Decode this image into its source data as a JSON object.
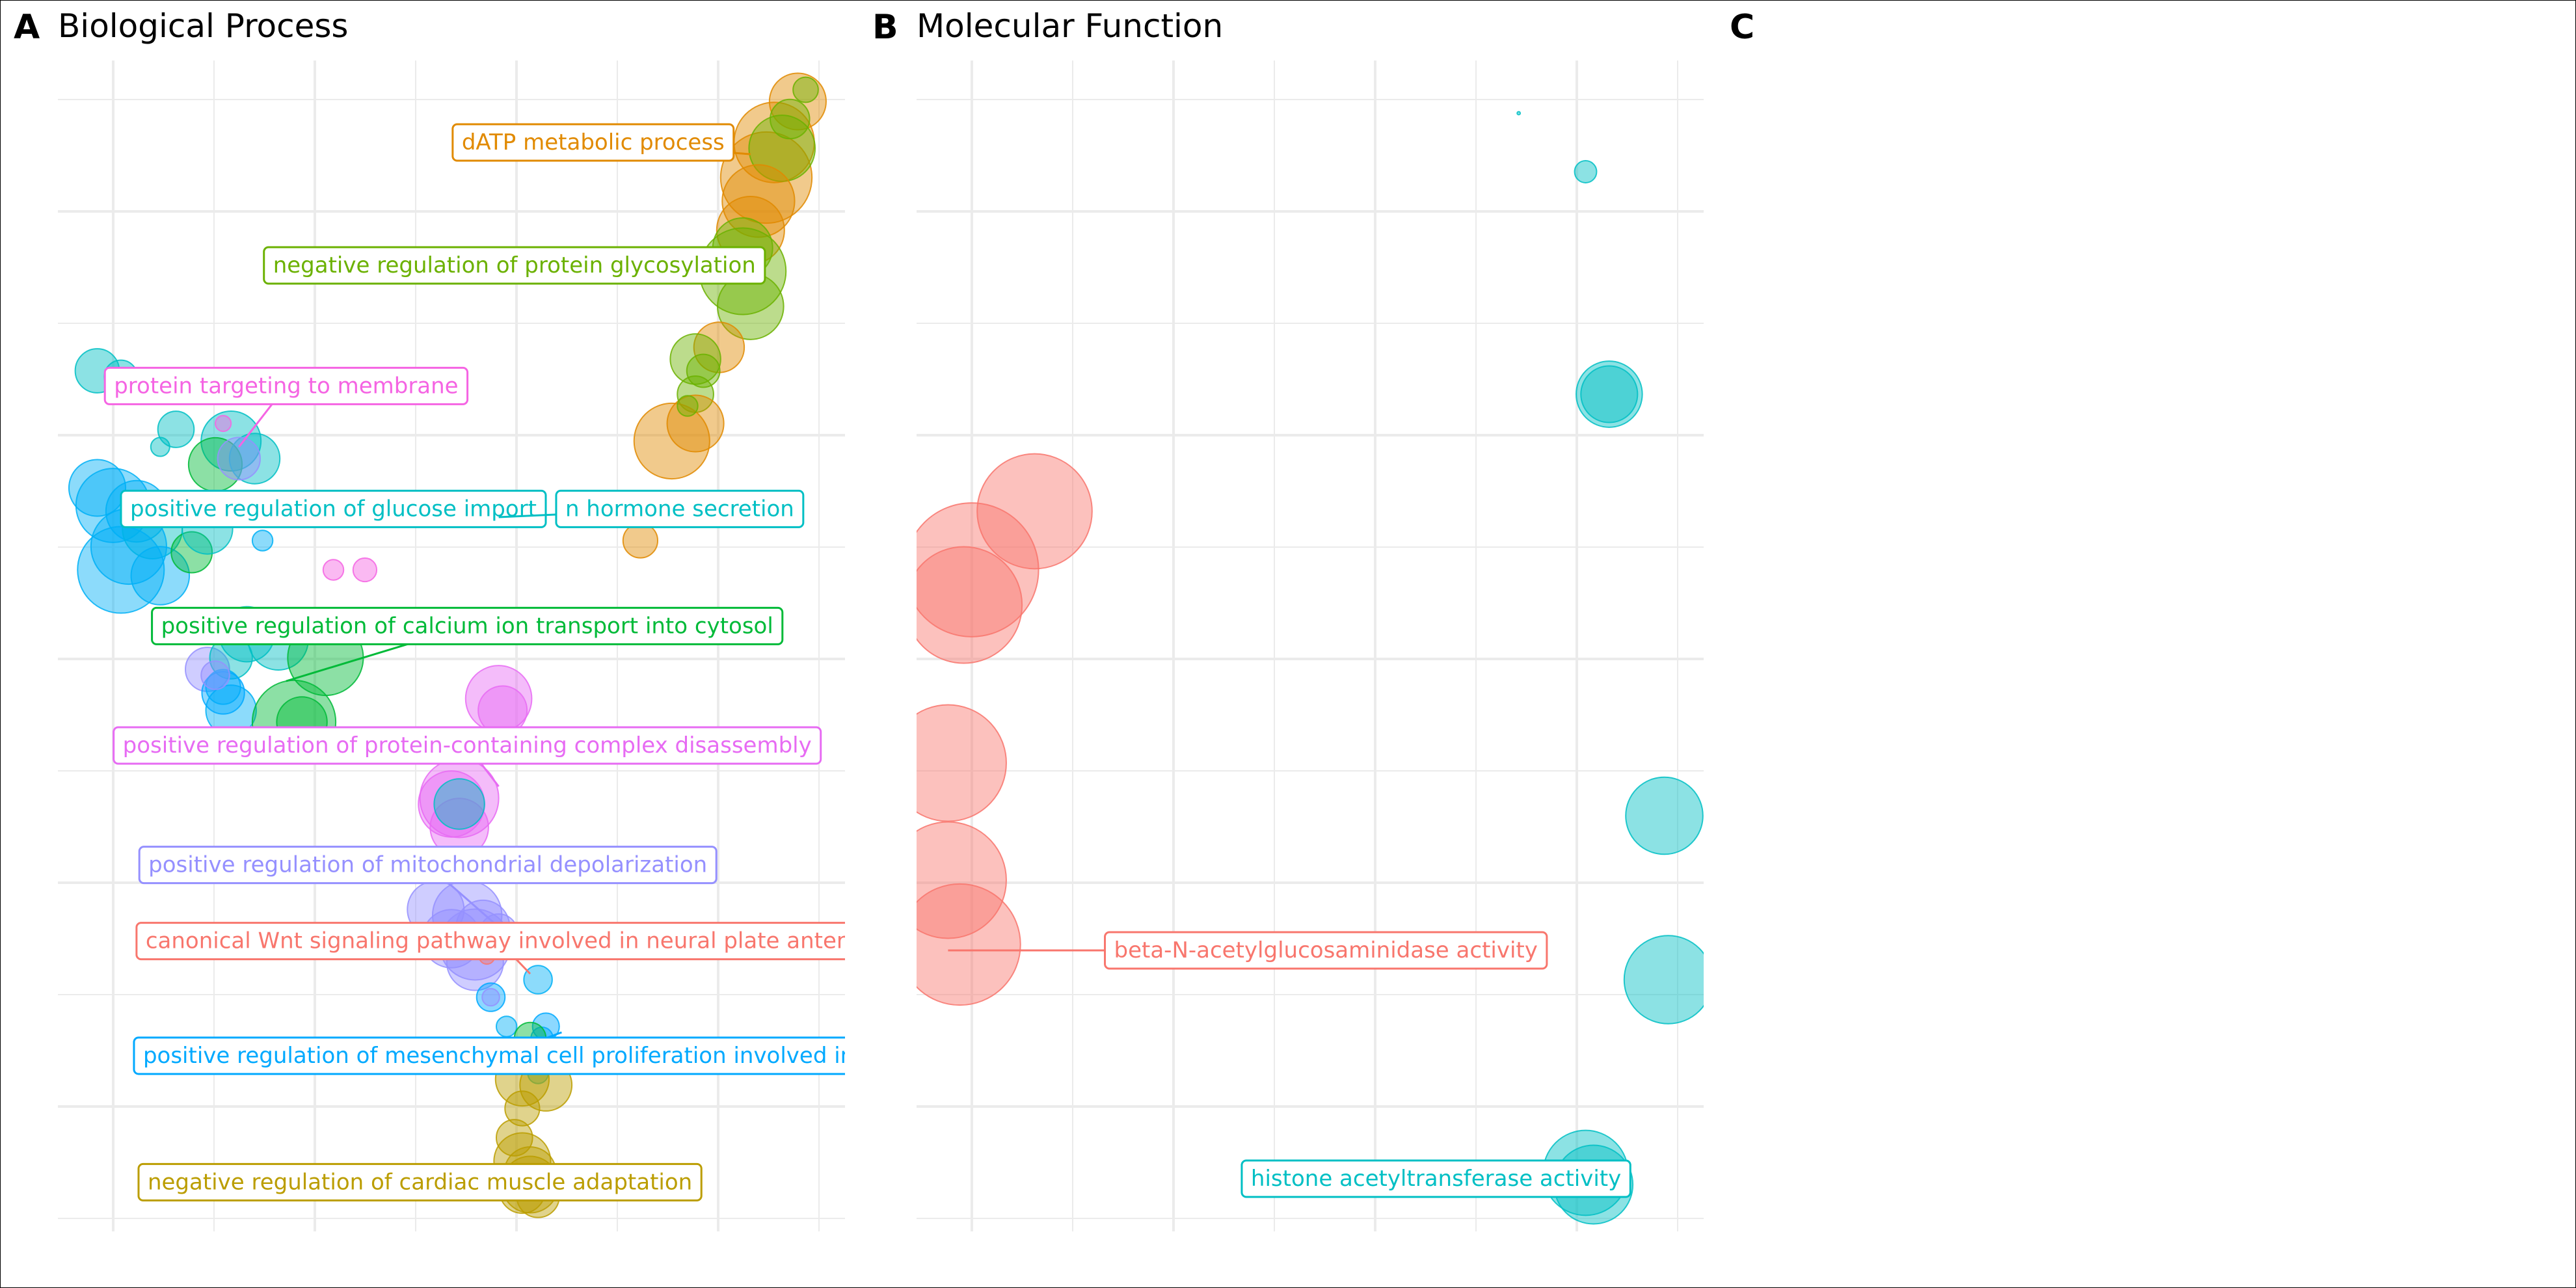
{
  "panels": {
    "A": {
      "letter": "A",
      "title": "Biological Process"
    },
    "B": {
      "letter": "B",
      "title": "Molecular Function"
    },
    "C": {
      "letter": "C",
      "title": ""
    }
  },
  "colors": {
    "orange": "#E18A00",
    "green": "#6BB100",
    "pink": "#F564E3",
    "teal": "#00BFC4",
    "cyan": "#00B0F6",
    "emerald": "#00BA38",
    "magenta": "#E76BF3",
    "purple": "#9590FF",
    "red": "#F8766D",
    "blue": "#00A9FF",
    "olive": "#BB9D00",
    "grid": "#EBEBEB"
  },
  "chart_data": [
    {
      "panel": "A",
      "type": "scatter",
      "title": "Biological Process",
      "xlim": [
        0,
        100
      ],
      "ylim": [
        0,
        100
      ],
      "grid": true,
      "labels": [
        {
          "text": "dATP metabolic process",
          "color": "orange",
          "x": 68,
          "y": 93,
          "pointX": 88,
          "pointY": 92
        },
        {
          "text": "negative regulation of protein glycosylation",
          "color": "green",
          "x": 58,
          "y": 82.5,
          "pointX": 87,
          "pointY": 82
        },
        {
          "text": "protein targeting to membrane",
          "color": "pink",
          "x": 29,
          "y": 72.2,
          "pointX": 23,
          "pointY": 67
        },
        {
          "text": "positive regulation of glucose import",
          "color": "teal",
          "x": 35,
          "y": 61.7,
          "pointX": 11,
          "pointY": 62
        },
        {
          "text": "n hormone secretion",
          "color": "teal",
          "x": 79,
          "y": 61.7,
          "pointX": 56,
          "pointY": 61
        },
        {
          "text": "positive regulation of calcium ion transport into cytosol",
          "color": "emerald",
          "x": 52,
          "y": 51.7,
          "pointX": 29,
          "pointY": 47
        },
        {
          "text": "positive regulation of protein-containing complex disassembly",
          "color": "magenta",
          "x": 52,
          "y": 41.5,
          "pointX": 56,
          "pointY": 38
        },
        {
          "text": "positive regulation of mitochondrial depolarization",
          "color": "purple",
          "x": 47,
          "y": 31.3,
          "pointX": 56,
          "pointY": 26
        },
        {
          "text": "canonical Wnt signaling pathway involved in neural plate anteri",
          "color": "red",
          "x": 56,
          "y": 24.8,
          "pointX": 60,
          "pointY": 22
        },
        {
          "text": "positive regulation of mesenchymal cell proliferation involved in",
          "color": "blue",
          "x": 56,
          "y": 15,
          "pointX": 64,
          "pointY": 17
        },
        {
          "text": "negative regulation of cardiac muscle adaptation",
          "color": "olive",
          "x": 46,
          "y": 4.2,
          "pointX": 63,
          "pointY": 5
        }
      ],
      "points": [
        {
          "x": 94,
          "y": 96.5,
          "r": 3.6,
          "c": "orange"
        },
        {
          "x": 91,
          "y": 93,
          "r": 5.1,
          "c": "orange"
        },
        {
          "x": 90,
          "y": 90,
          "r": 5.8,
          "c": "orange"
        },
        {
          "x": 92,
          "y": 92.5,
          "r": 4.2,
          "c": "green"
        },
        {
          "x": 95,
          "y": 97.5,
          "r": 1.6,
          "c": "green"
        },
        {
          "x": 93,
          "y": 95,
          "r": 2.5,
          "c": "green"
        },
        {
          "x": 89,
          "y": 88,
          "r": 4.6,
          "c": "orange"
        },
        {
          "x": 88,
          "y": 85.5,
          "r": 4.3,
          "c": "orange"
        },
        {
          "x": 87,
          "y": 82,
          "r": 5.5,
          "c": "green"
        },
        {
          "x": 88,
          "y": 79,
          "r": 4.2,
          "c": "green"
        },
        {
          "x": 87,
          "y": 84,
          "r": 3.8,
          "c": "green"
        },
        {
          "x": 84,
          "y": 75.5,
          "r": 3.2,
          "c": "orange"
        },
        {
          "x": 81,
          "y": 74.5,
          "r": 3.2,
          "c": "green"
        },
        {
          "x": 82,
          "y": 73.5,
          "r": 2.1,
          "c": "green"
        },
        {
          "x": 81,
          "y": 71.5,
          "r": 2.3,
          "c": "green"
        },
        {
          "x": 81,
          "y": 69,
          "r": 3.6,
          "c": "orange"
        },
        {
          "x": 78,
          "y": 67.5,
          "r": 4.8,
          "c": "orange"
        },
        {
          "x": 80,
          "y": 70.5,
          "r": 1.3,
          "c": "green"
        },
        {
          "x": 74,
          "y": 59,
          "r": 2.2,
          "c": "orange"
        },
        {
          "x": 5,
          "y": 73.5,
          "r": 2.8,
          "c": "teal"
        },
        {
          "x": 8,
          "y": 73,
          "r": 2.1,
          "c": "teal"
        },
        {
          "x": 15,
          "y": 68.5,
          "r": 2.3,
          "c": "teal"
        },
        {
          "x": 22,
          "y": 67.5,
          "r": 3.8,
          "c": "teal"
        },
        {
          "x": 20,
          "y": 65.5,
          "r": 3.4,
          "c": "emerald"
        },
        {
          "x": 25,
          "y": 66,
          "r": 3.2,
          "c": "teal"
        },
        {
          "x": 23,
          "y": 66,
          "r": 2.7,
          "c": "purple"
        },
        {
          "x": 21,
          "y": 69,
          "r": 1.0,
          "c": "pink"
        },
        {
          "x": 13,
          "y": 67,
          "r": 1.2,
          "c": "teal"
        },
        {
          "x": 5,
          "y": 63.5,
          "r": 3.6,
          "c": "cyan"
        },
        {
          "x": 7,
          "y": 62,
          "r": 4.7,
          "c": "cyan"
        },
        {
          "x": 10,
          "y": 61.5,
          "r": 3.9,
          "c": "cyan"
        },
        {
          "x": 12,
          "y": 60,
          "r": 3.8,
          "c": "teal"
        },
        {
          "x": 9,
          "y": 58.5,
          "r": 4.8,
          "c": "cyan"
        },
        {
          "x": 8,
          "y": 56.5,
          "r": 5.5,
          "c": "cyan"
        },
        {
          "x": 13,
          "y": 56,
          "r": 3.7,
          "c": "cyan"
        },
        {
          "x": 17,
          "y": 58,
          "r": 2.6,
          "c": "emerald"
        },
        {
          "x": 19,
          "y": 60,
          "r": 3.2,
          "c": "teal"
        },
        {
          "x": 26,
          "y": 59,
          "r": 1.3,
          "c": "cyan"
        },
        {
          "x": 35,
          "y": 56.5,
          "r": 1.3,
          "c": "pink"
        },
        {
          "x": 39,
          "y": 56.5,
          "r": 1.5,
          "c": "pink"
        },
        {
          "x": 24,
          "y": 51,
          "r": 3.5,
          "c": "teal"
        },
        {
          "x": 28,
          "y": 50.5,
          "r": 3.8,
          "c": "teal"
        },
        {
          "x": 34,
          "y": 49,
          "r": 4.8,
          "c": "emerald"
        },
        {
          "x": 19,
          "y": 48,
          "r": 2.8,
          "c": "purple"
        },
        {
          "x": 22,
          "y": 49,
          "r": 2.7,
          "c": "teal"
        },
        {
          "x": 21,
          "y": 46.5,
          "r": 2.2,
          "c": "cyan"
        },
        {
          "x": 22,
          "y": 44.5,
          "r": 3.2,
          "c": "cyan"
        },
        {
          "x": 21,
          "y": 46,
          "r": 2.7,
          "c": "blue"
        },
        {
          "x": 20,
          "y": 47.5,
          "r": 1.8,
          "c": "purple"
        },
        {
          "x": 30,
          "y": 43.5,
          "r": 5.3,
          "c": "emerald"
        },
        {
          "x": 31,
          "y": 43.5,
          "r": 3.2,
          "c": "emerald"
        },
        {
          "x": 56,
          "y": 45.5,
          "r": 4.2,
          "c": "magenta"
        },
        {
          "x": 56.5,
          "y": 44.5,
          "r": 3.1,
          "c": "magenta"
        },
        {
          "x": 51,
          "y": 37,
          "r": 5.0,
          "c": "magenta"
        },
        {
          "x": 50,
          "y": 36.5,
          "r": 4.2,
          "c": "magenta"
        },
        {
          "x": 51,
          "y": 34.5,
          "r": 3.7,
          "c": "magenta"
        },
        {
          "x": 51,
          "y": 36.5,
          "r": 3.2,
          "c": "teal"
        },
        {
          "x": 48,
          "y": 27.5,
          "r": 3.6,
          "c": "purple"
        },
        {
          "x": 52,
          "y": 27,
          "r": 4.4,
          "c": "purple"
        },
        {
          "x": 54,
          "y": 26,
          "r": 3.4,
          "c": "purple"
        },
        {
          "x": 50,
          "y": 25,
          "r": 3.7,
          "c": "purple"
        },
        {
          "x": 53,
          "y": 24.5,
          "r": 4.5,
          "c": "purple"
        },
        {
          "x": 53,
          "y": 23,
          "r": 3.6,
          "c": "purple"
        },
        {
          "x": 56,
          "y": 25.5,
          "r": 2.4,
          "c": "purple"
        },
        {
          "x": 54.5,
          "y": 23.5,
          "r": 1.0,
          "c": "red"
        },
        {
          "x": 61,
          "y": 21.5,
          "r": 1.8,
          "c": "cyan"
        },
        {
          "x": 55,
          "y": 20,
          "r": 1.8,
          "c": "blue"
        },
        {
          "x": 55,
          "y": 20,
          "r": 1.1,
          "c": "purple"
        },
        {
          "x": 57,
          "y": 17.5,
          "r": 1.3,
          "c": "cyan"
        },
        {
          "x": 62,
          "y": 17.5,
          "r": 1.7,
          "c": "blue"
        },
        {
          "x": 61.5,
          "y": 16.5,
          "r": 1.4,
          "c": "blue"
        },
        {
          "x": 60,
          "y": 16.5,
          "r": 2.0,
          "c": "emerald"
        },
        {
          "x": 62,
          "y": 15,
          "r": 1.4,
          "c": "cyan"
        },
        {
          "x": 61,
          "y": 13.5,
          "r": 1.3,
          "c": "teal"
        },
        {
          "x": 59,
          "y": 13,
          "r": 3.4,
          "c": "olive"
        },
        {
          "x": 62,
          "y": 12.5,
          "r": 3.3,
          "c": "olive"
        },
        {
          "x": 59,
          "y": 10.5,
          "r": 2.2,
          "c": "olive"
        },
        {
          "x": 58,
          "y": 8,
          "r": 2.3,
          "c": "olive"
        },
        {
          "x": 59,
          "y": 6,
          "r": 3.6,
          "c": "olive"
        },
        {
          "x": 60,
          "y": 4,
          "r": 3.6,
          "c": "olive"
        },
        {
          "x": 59,
          "y": 3.5,
          "r": 2.9,
          "c": "olive"
        },
        {
          "x": 60,
          "y": 5,
          "r": 3.3,
          "c": "olive"
        },
        {
          "x": 61,
          "y": 3,
          "r": 2.7,
          "c": "olive"
        }
      ]
    },
    {
      "panel": "B",
      "type": "scatter",
      "title": "Molecular Function",
      "xlim": [
        0,
        100
      ],
      "ylim": [
        0,
        100
      ],
      "grid": true,
      "labels": [
        {
          "text": "beta-N-acetylglucosaminidase activity",
          "color": "red",
          "x": 52,
          "y": 24,
          "pointX": 4,
          "pointY": 24
        },
        {
          "text": "histone acetyltransferase activity",
          "color": "teal",
          "x": 66,
          "y": 4.5,
          "pointX": 85,
          "pointY": 4
        }
      ],
      "points": [
        {
          "x": 76.5,
          "y": 95.5,
          "r": 0.2,
          "c": "teal"
        },
        {
          "x": 85,
          "y": 90.5,
          "r": 1.4,
          "c": "teal"
        },
        {
          "x": 88,
          "y": 71.5,
          "r": 4.2,
          "c": "teal"
        },
        {
          "x": 88,
          "y": 71.5,
          "r": 3.6,
          "c": "teal"
        },
        {
          "x": 15,
          "y": 61.5,
          "r": 7.3,
          "c": "red"
        },
        {
          "x": 7,
          "y": 56.5,
          "r": 8.5,
          "c": "red"
        },
        {
          "x": 6,
          "y": 53.5,
          "r": 7.4,
          "c": "red"
        },
        {
          "x": 4,
          "y": 40,
          "r": 7.4,
          "c": "red"
        },
        {
          "x": 95,
          "y": 35.5,
          "r": 4.9,
          "c": "teal"
        },
        {
          "x": 4,
          "y": 30,
          "r": 7.4,
          "c": "red"
        },
        {
          "x": 5.5,
          "y": 24.5,
          "r": 7.7,
          "c": "red"
        },
        {
          "x": 95.5,
          "y": 21.5,
          "r": 5.6,
          "c": "teal"
        },
        {
          "x": 85,
          "y": 5,
          "r": 5.4,
          "c": "teal"
        },
        {
          "x": 86,
          "y": 4,
          "r": 5.0,
          "c": "teal"
        }
      ]
    }
  ]
}
